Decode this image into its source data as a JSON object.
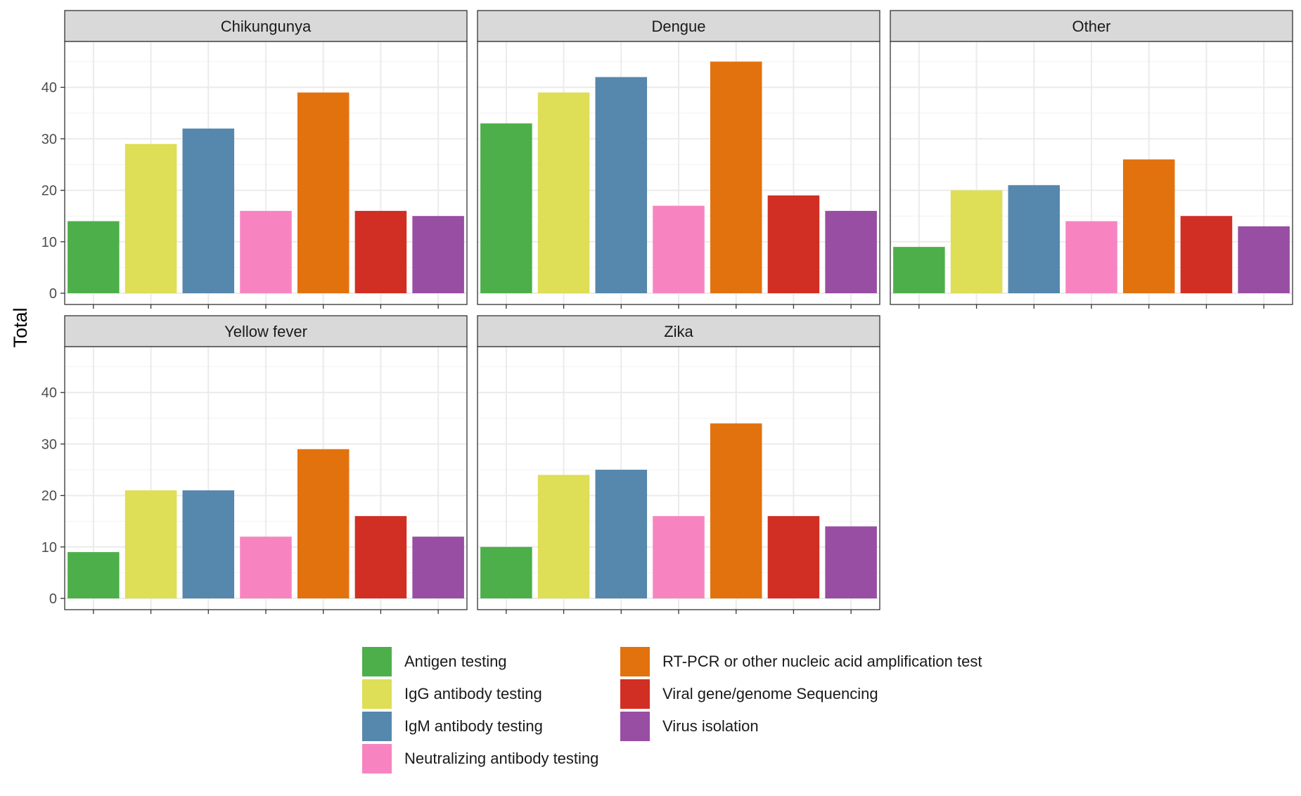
{
  "chart_data": {
    "type": "bar",
    "ylabel": "Total",
    "xlabel": "",
    "ylim": [
      0,
      47
    ],
    "yticks": [
      0,
      10,
      20,
      30,
      40
    ],
    "grid": true,
    "legend_position": "bottom",
    "categories": [
      "Antigen testing",
      "IgG antibody testing",
      "IgM antibody testing",
      "Neutralizing antibody testing",
      "RT-PCR or other nucleic acid amplification test",
      "Viral gene/genome Sequencing",
      "Virus isolation"
    ],
    "colors": [
      "#4daf4a",
      "#dede57",
      "#5687ad",
      "#f784c0",
      "#e2720e",
      "#d12f23",
      "#984ea3"
    ],
    "panels": [
      {
        "title": "Chikungunya",
        "values": [
          14,
          29,
          32,
          16,
          39,
          16,
          15
        ]
      },
      {
        "title": "Dengue",
        "values": [
          33,
          39,
          42,
          17,
          45,
          19,
          16
        ]
      },
      {
        "title": "Other",
        "values": [
          9,
          20,
          21,
          14,
          26,
          15,
          13
        ]
      },
      {
        "title": "Yellow fever",
        "values": [
          9,
          21,
          21,
          12,
          29,
          16,
          12
        ]
      },
      {
        "title": "Zika",
        "values": [
          10,
          24,
          25,
          16,
          34,
          16,
          14
        ]
      }
    ]
  },
  "legend": {
    "items": [
      "Antigen testing",
      "IgG antibody testing",
      "IgM antibody testing",
      "Neutralizing antibody testing",
      "RT-PCR or other nucleic acid amplification test",
      "Viral gene/genome Sequencing",
      "Virus isolation"
    ]
  }
}
